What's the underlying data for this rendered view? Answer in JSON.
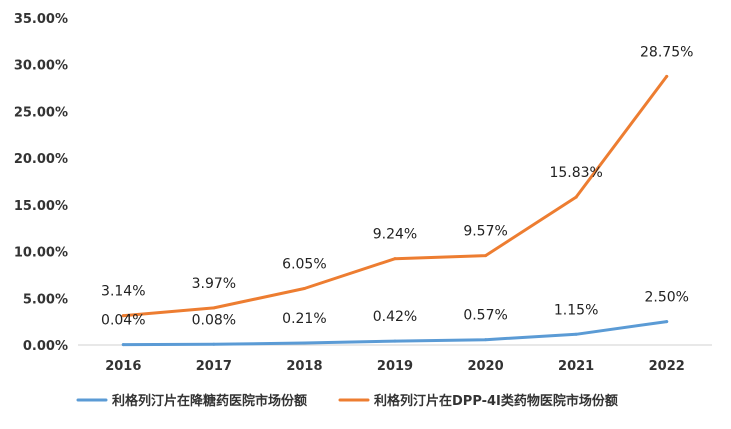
{
  "chart_data": {
    "type": "line",
    "categories": [
      "2016",
      "2017",
      "2018",
      "2019",
      "2020",
      "2021",
      "2022"
    ],
    "ylim": [
      0,
      35
    ],
    "y_ticks": [
      0,
      5,
      10,
      15,
      20,
      25,
      30,
      35
    ],
    "y_tick_labels": [
      "0.00%",
      "5.00%",
      "10.00%",
      "15.00%",
      "20.00%",
      "25.00%",
      "30.00%",
      "35.00%"
    ],
    "grid": false,
    "legend_position": "bottom",
    "series": [
      {
        "name": "利格列汀片在降糖药医院市场份额",
        "color": "#5B9BD5",
        "values": [
          0.04,
          0.08,
          0.21,
          0.42,
          0.57,
          1.15,
          2.5
        ],
        "labels": [
          "0.04%",
          "0.08%",
          "0.21%",
          "0.42%",
          "0.57%",
          "1.15%",
          "2.50%"
        ]
      },
      {
        "name": "利格列汀片在DPP-4I类药物医院市场份额",
        "color": "#ED7D31",
        "values": [
          3.14,
          3.97,
          6.05,
          9.24,
          9.57,
          15.83,
          28.75
        ],
        "labels": [
          "3.14%",
          "3.97%",
          "6.05%",
          "9.24%",
          "9.57%",
          "15.83%",
          "28.75%"
        ]
      }
    ]
  }
}
